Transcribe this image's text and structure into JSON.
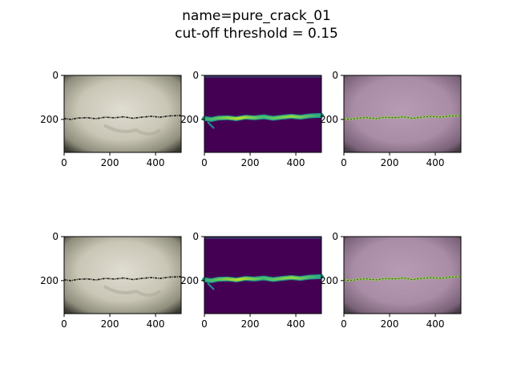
{
  "figure": {
    "title_line1": "name=pure_crack_01",
    "title_line2": "cut-off threshold = 0.15"
  },
  "chart_data": [
    {
      "type": "image",
      "panel": "original",
      "xticks": [
        0,
        200,
        400
      ],
      "yticks": [
        0,
        200
      ],
      "xlim": [
        0,
        512
      ],
      "ylim": [
        350,
        0
      ]
    },
    {
      "type": "heatmap",
      "panel": "prediction",
      "xticks": [
        0,
        200,
        400
      ],
      "yticks": [
        0,
        200
      ],
      "xlim": [
        0,
        512
      ],
      "ylim": [
        350,
        0
      ]
    },
    {
      "type": "image",
      "panel": "overlay",
      "xticks": [
        0,
        200,
        400
      ],
      "yticks": [
        0,
        200
      ],
      "xlim": [
        0,
        512
      ],
      "ylim": [
        350,
        0
      ]
    },
    {
      "type": "image",
      "panel": "original",
      "xticks": [
        0,
        200,
        400
      ],
      "yticks": [
        0,
        200
      ],
      "xlim": [
        0,
        512
      ],
      "ylim": [
        350,
        0
      ]
    },
    {
      "type": "heatmap",
      "panel": "prediction-thresholded",
      "xticks": [
        0,
        200,
        400
      ],
      "yticks": [
        0,
        200
      ],
      "xlim": [
        0,
        512
      ],
      "ylim": [
        350,
        0
      ]
    },
    {
      "type": "image",
      "panel": "overlay-thresholded",
      "xticks": [
        0,
        200,
        400
      ],
      "yticks": [
        0,
        200
      ],
      "xlim": [
        0,
        512
      ],
      "ylim": [
        350,
        0
      ]
    }
  ],
  "colors": {
    "viridis_low": "#440154",
    "viridis_mid": "#21918c",
    "viridis_high": "#fde725",
    "overlay_tint": "#9a7a98"
  }
}
